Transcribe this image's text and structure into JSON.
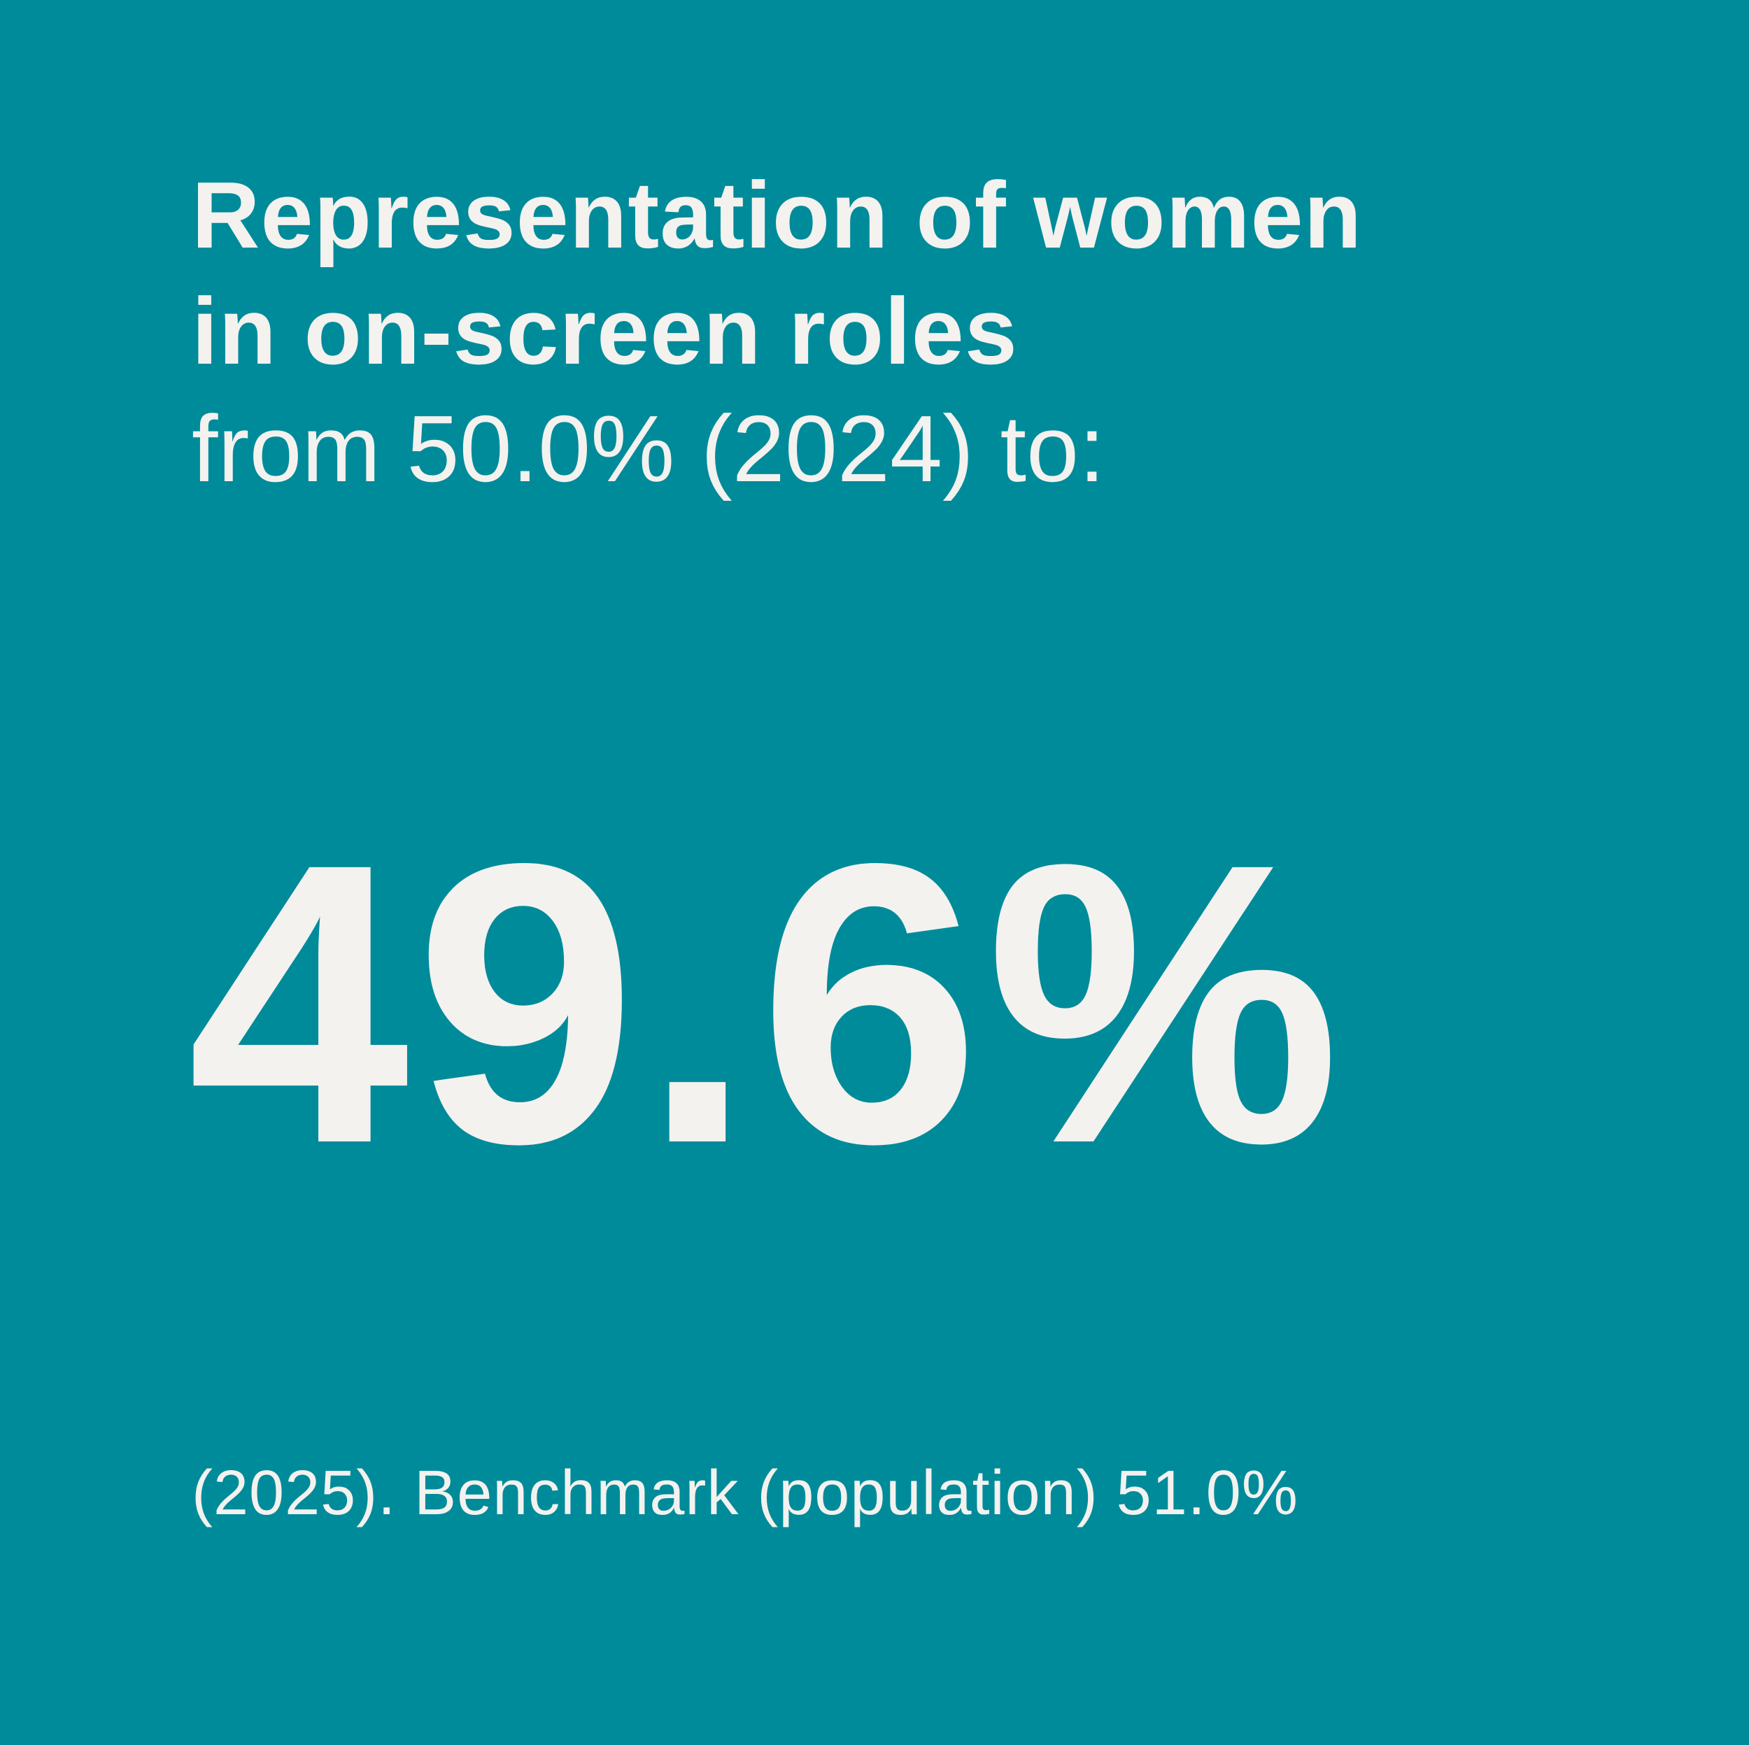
{
  "card": {
    "title_lines": [
      "Representation of women",
      "in on-screen roles"
    ],
    "subtitle": "from 50.0% (2024) to:",
    "headline": "49.6%",
    "footnote": "(2025). Benchmark (population) 51.0%"
  }
}
